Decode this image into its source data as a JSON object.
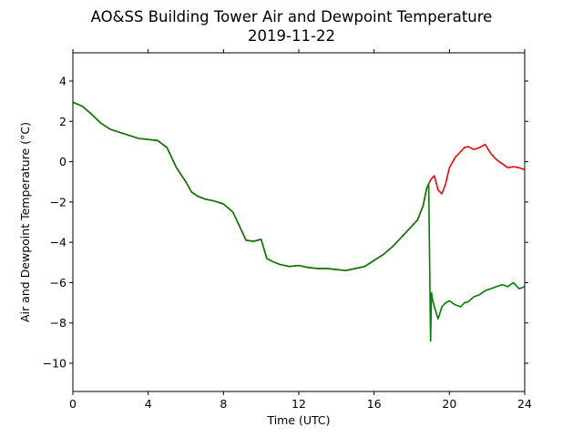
{
  "chart_data": {
    "type": "line",
    "title": "AO&SS Building Tower Air and Dewpoint Temperature",
    "subtitle": "2019-11-22",
    "xlabel": "Time (UTC)",
    "ylabel": "Air and Dewpoint Temperature (°C)",
    "xlim": [
      0,
      24
    ],
    "ylim": [
      -11.4,
      5.4
    ],
    "xticks": [
      0,
      4,
      8,
      12,
      16,
      20,
      24
    ],
    "yticks": [
      -10,
      -8,
      -6,
      -4,
      -2,
      0,
      2,
      4
    ],
    "ytick_labels": [
      "−10",
      "−8",
      "−6",
      "−4",
      "−2",
      "0",
      "2",
      "4"
    ],
    "grid": false,
    "legend": "none",
    "series": [
      {
        "color": "#ff0000",
        "x": [
          0,
          0.5,
          1,
          1.5,
          2,
          2.5,
          3,
          3.5,
          4,
          4.5,
          5,
          5.5,
          6,
          6.3,
          6.6,
          7,
          7.5,
          8,
          8.5,
          8.8,
          9.2,
          9.6,
          10,
          10.3,
          10.6,
          11,
          11.5,
          12,
          12.5,
          13,
          13.5,
          14,
          14.5,
          15,
          15.5,
          16,
          16.5,
          17,
          17.5,
          18,
          18.3,
          18.6,
          18.8,
          18.9,
          19.0,
          19.2,
          19.4,
          19.6,
          19.8,
          20.0,
          20.3,
          20.6,
          20.8,
          21.0,
          21.3,
          21.6,
          21.9,
          22.2,
          22.5,
          22.8,
          23.1,
          23.4,
          23.7,
          24
        ],
        "y": [
          2.95,
          2.75,
          2.35,
          1.9,
          1.6,
          1.45,
          1.3,
          1.15,
          1.1,
          1.05,
          0.7,
          -0.3,
          -1.0,
          -1.5,
          -1.7,
          -1.85,
          -1.95,
          -2.1,
          -2.5,
          -3.1,
          -3.9,
          -3.95,
          -3.85,
          -4.8,
          -4.95,
          -5.1,
          -5.2,
          -5.15,
          -5.25,
          -5.3,
          -5.3,
          -5.35,
          -5.4,
          -5.3,
          -5.2,
          -4.9,
          -4.6,
          -4.2,
          -3.7,
          -3.2,
          -2.9,
          -2.2,
          -1.3,
          -1.1,
          -0.9,
          -0.7,
          -1.4,
          -1.6,
          -1.1,
          -0.3,
          0.2,
          0.5,
          0.7,
          0.75,
          0.6,
          0.7,
          0.85,
          0.4,
          0.1,
          -0.1,
          -0.3,
          -0.25,
          -0.3,
          -0.4
        ]
      },
      {
        "color": "#008000",
        "x": [
          0,
          0.5,
          1,
          1.5,
          2,
          2.5,
          3,
          3.5,
          4,
          4.5,
          5,
          5.5,
          6,
          6.3,
          6.6,
          7,
          7.5,
          8,
          8.5,
          8.8,
          9.2,
          9.6,
          10,
          10.3,
          10.6,
          11,
          11.5,
          12,
          12.5,
          13,
          13.5,
          14,
          14.5,
          15,
          15.5,
          16,
          16.5,
          17,
          17.5,
          18,
          18.3,
          18.6,
          18.8,
          18.9,
          19.0,
          19.05,
          19.1,
          19.2,
          19.4,
          19.6,
          19.8,
          20.0,
          20.3,
          20.6,
          20.8,
          21.0,
          21.3,
          21.6,
          21.9,
          22.2,
          22.5,
          22.8,
          23.1,
          23.4,
          23.7,
          24
        ],
        "y": [
          2.95,
          2.75,
          2.35,
          1.9,
          1.6,
          1.45,
          1.3,
          1.15,
          1.1,
          1.05,
          0.7,
          -0.3,
          -1.0,
          -1.5,
          -1.7,
          -1.85,
          -1.95,
          -2.1,
          -2.5,
          -3.1,
          -3.9,
          -3.95,
          -3.85,
          -4.8,
          -4.95,
          -5.1,
          -5.2,
          -5.15,
          -5.25,
          -5.3,
          -5.3,
          -5.35,
          -5.4,
          -5.3,
          -5.2,
          -4.9,
          -4.6,
          -4.2,
          -3.7,
          -3.2,
          -2.9,
          -2.2,
          -1.3,
          -1.1,
          -8.9,
          -6.5,
          -6.8,
          -7.2,
          -7.8,
          -7.2,
          -7.0,
          -6.9,
          -7.1,
          -7.2,
          -7.0,
          -6.95,
          -6.7,
          -6.6,
          -6.4,
          -6.3,
          -6.2,
          -6.1,
          -6.2,
          -6.0,
          -6.3,
          -6.2
        ]
      }
    ]
  }
}
